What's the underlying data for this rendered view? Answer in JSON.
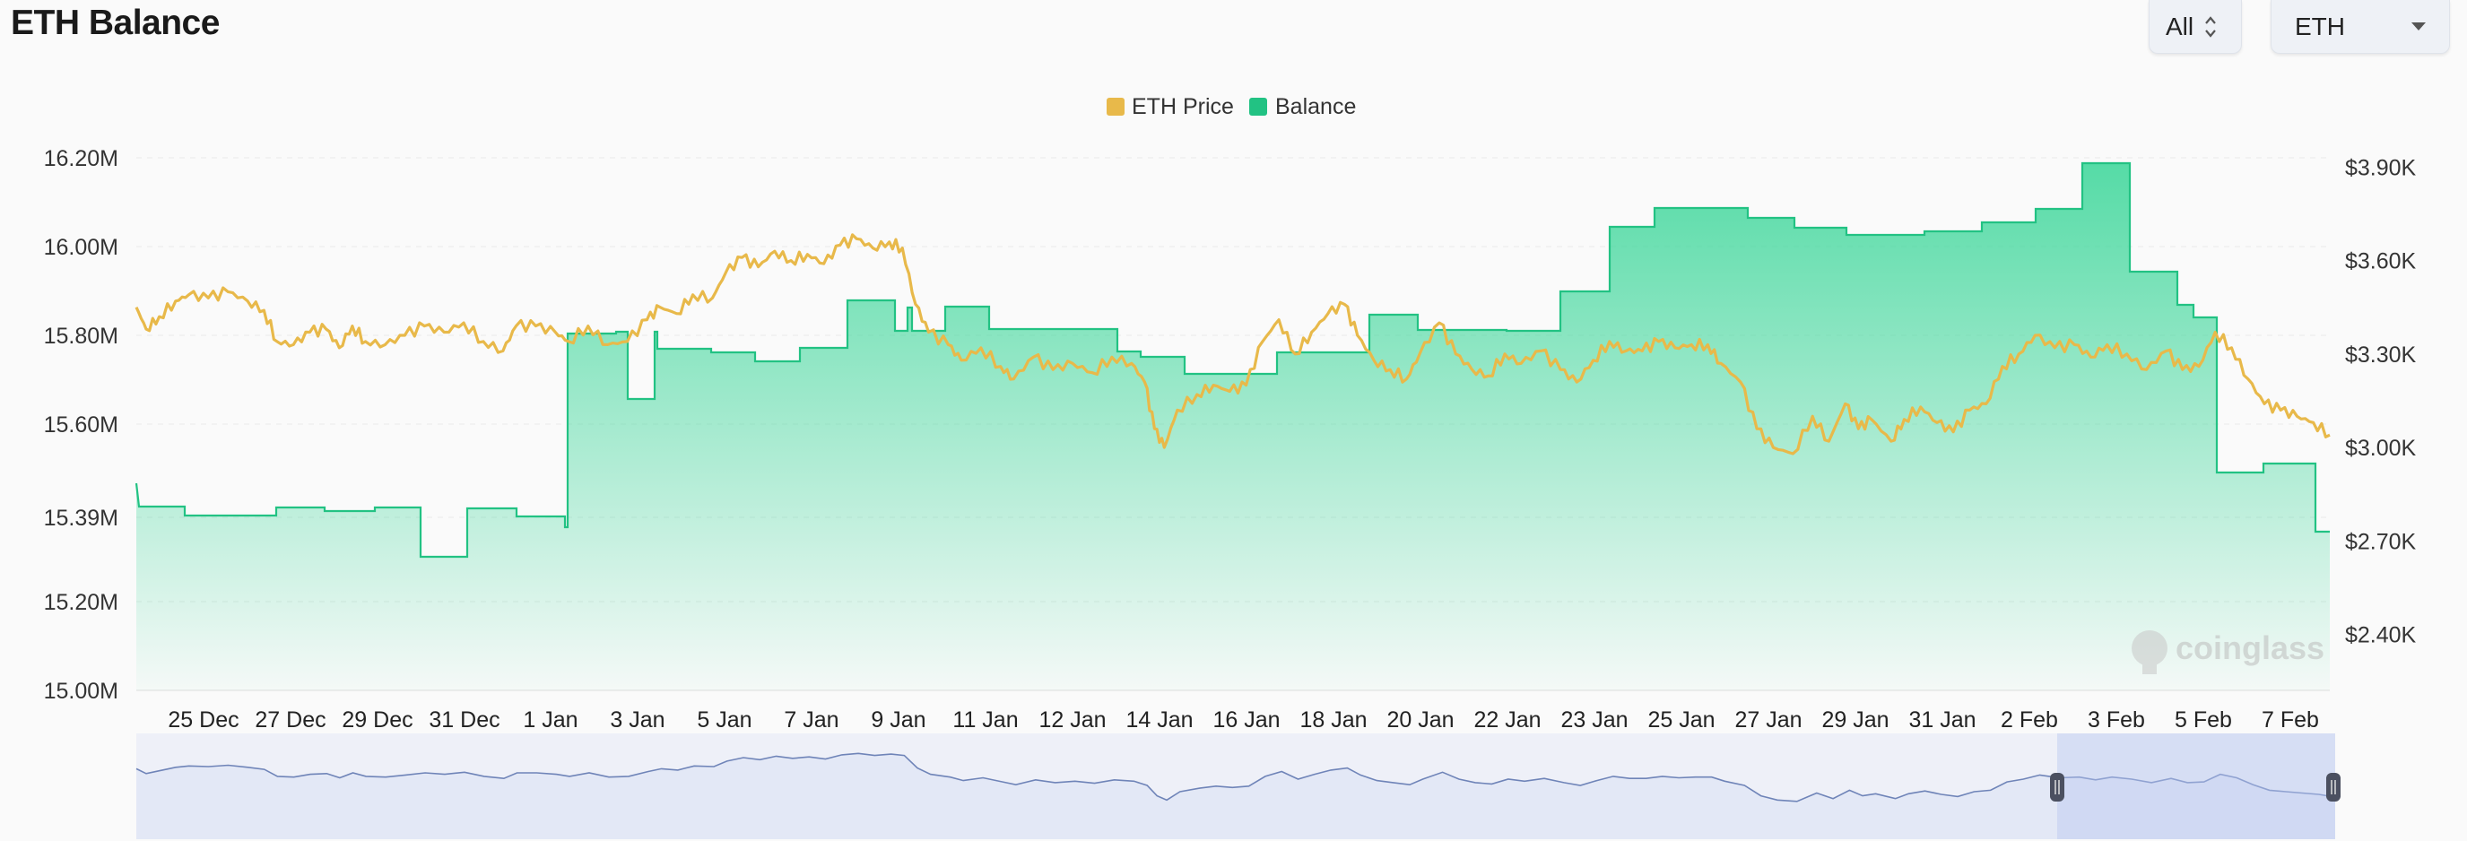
{
  "header": {
    "title": "ETH Balance",
    "range_select": {
      "value": "All"
    },
    "asset_select": {
      "value": "ETH"
    }
  },
  "watermark": "coinglass",
  "colors": {
    "price": "#e8b94a",
    "balance_line": "#22c283",
    "balance_fill_top": "#3fd79b",
    "navigator_line": "#6f84b8",
    "navigator_fill": "#e6eaf7"
  },
  "chart_data": {
    "type": "line",
    "x_tick_labels": [
      "25 Dec",
      "27 Dec",
      "29 Dec",
      "31 Dec",
      "1 Jan",
      "3 Jan",
      "5 Jan",
      "7 Jan",
      "9 Jan",
      "11 Jan",
      "12 Jan",
      "14 Jan",
      "16 Jan",
      "18 Jan",
      "20 Jan",
      "22 Jan",
      "23 Jan",
      "25 Jan",
      "27 Jan",
      "29 Jan",
      "31 Jan",
      "2 Feb",
      "3 Feb",
      "5 Feb",
      "7 Feb"
    ],
    "x_range_days": [
      0,
      48.5
    ],
    "y_left": {
      "ticks": [
        "15.00M",
        "15.20M",
        "15.39M",
        "15.60M",
        "15.80M",
        "16.00M",
        "16.20M"
      ],
      "range": [
        15.0,
        16.2
      ]
    },
    "y_right": {
      "ticks": [
        "$2.40K",
        "$2.70K",
        "$3.00K",
        "$3.30K",
        "$3.60K",
        "$3.90K"
      ],
      "range": [
        2.22,
        3.93
      ]
    },
    "legend": {
      "placement": "top-center"
    },
    "series": [
      {
        "name": "ETH Price",
        "axis": "right",
        "points": [
          [
            0,
            3.45
          ],
          [
            0.3,
            3.38
          ],
          [
            0.7,
            3.42
          ],
          [
            1.2,
            3.47
          ],
          [
            1.6,
            3.49
          ],
          [
            2.2,
            3.48
          ],
          [
            2.8,
            3.5
          ],
          [
            3.4,
            3.47
          ],
          [
            3.9,
            3.44
          ],
          [
            4.3,
            3.34
          ],
          [
            4.8,
            3.33
          ],
          [
            5.3,
            3.37
          ],
          [
            5.8,
            3.38
          ],
          [
            6.2,
            3.32
          ],
          [
            6.6,
            3.39
          ],
          [
            7.0,
            3.34
          ],
          [
            7.6,
            3.33
          ],
          [
            8.2,
            3.36
          ],
          [
            8.8,
            3.39
          ],
          [
            9.4,
            3.37
          ],
          [
            10.0,
            3.4
          ],
          [
            10.6,
            3.34
          ],
          [
            11.2,
            3.31
          ],
          [
            11.6,
            3.39
          ],
          [
            12.2,
            3.39
          ],
          [
            12.8,
            3.37
          ],
          [
            13.2,
            3.34
          ],
          [
            13.8,
            3.39
          ],
          [
            14.4,
            3.33
          ],
          [
            15.0,
            3.34
          ],
          [
            15.6,
            3.41
          ],
          [
            16.0,
            3.45
          ],
          [
            16.5,
            3.43
          ],
          [
            17.0,
            3.49
          ],
          [
            17.6,
            3.48
          ],
          [
            18.0,
            3.56
          ],
          [
            18.5,
            3.61
          ],
          [
            19.0,
            3.58
          ],
          [
            19.5,
            3.63
          ],
          [
            20.0,
            3.6
          ],
          [
            20.5,
            3.62
          ],
          [
            21.0,
            3.59
          ],
          [
            21.5,
            3.65
          ],
          [
            22.0,
            3.67
          ],
          [
            22.5,
            3.64
          ],
          [
            23.0,
            3.66
          ],
          [
            23.4,
            3.64
          ],
          [
            23.8,
            3.46
          ],
          [
            24.2,
            3.37
          ],
          [
            24.8,
            3.33
          ],
          [
            25.2,
            3.28
          ],
          [
            25.8,
            3.32
          ],
          [
            26.4,
            3.26
          ],
          [
            26.8,
            3.22
          ],
          [
            27.4,
            3.29
          ],
          [
            28.0,
            3.25
          ],
          [
            28.6,
            3.27
          ],
          [
            29.2,
            3.24
          ],
          [
            29.8,
            3.29
          ],
          [
            30.4,
            3.27
          ],
          [
            30.8,
            3.21
          ],
          [
            31.1,
            3.06
          ],
          [
            31.4,
            3.0
          ],
          [
            31.8,
            3.12
          ],
          [
            32.4,
            3.17
          ],
          [
            32.9,
            3.2
          ],
          [
            33.4,
            3.18
          ],
          [
            33.9,
            3.2
          ],
          [
            34.4,
            3.34
          ],
          [
            34.9,
            3.41
          ],
          [
            35.4,
            3.3
          ],
          [
            35.9,
            3.37
          ],
          [
            36.4,
            3.43
          ],
          [
            36.9,
            3.46
          ],
          [
            37.3,
            3.36
          ],
          [
            37.8,
            3.28
          ],
          [
            38.3,
            3.25
          ],
          [
            38.8,
            3.22
          ],
          [
            39.2,
            3.3
          ],
          [
            39.8,
            3.4
          ],
          [
            40.3,
            3.3
          ],
          [
            40.8,
            3.25
          ],
          [
            41.3,
            3.23
          ],
          [
            41.8,
            3.3
          ],
          [
            42.3,
            3.27
          ],
          [
            42.9,
            3.31
          ],
          [
            43.5,
            3.25
          ],
          [
            44.0,
            3.21
          ],
          [
            44.5,
            3.28
          ],
          [
            45.0,
            3.34
          ],
          [
            45.5,
            3.31
          ],
          [
            46.0,
            3.31
          ],
          [
            46.5,
            3.34
          ],
          [
            47.0,
            3.32
          ],
          [
            47.5,
            3.33
          ],
          [
            48.0,
            3.33
          ],
          [
            48.4,
            3.27
          ],
          [
            49.0,
            3.21
          ],
          [
            49.5,
            3.06
          ],
          [
            50.0,
            3.0
          ],
          [
            50.6,
            2.98
          ],
          [
            51.2,
            3.1
          ],
          [
            51.7,
            3.02
          ],
          [
            52.2,
            3.14
          ],
          [
            52.6,
            3.06
          ],
          [
            53.0,
            3.09
          ],
          [
            53.6,
            3.02
          ],
          [
            54.0,
            3.09
          ],
          [
            54.5,
            3.13
          ],
          [
            55.0,
            3.08
          ],
          [
            55.5,
            3.05
          ],
          [
            56.0,
            3.12
          ],
          [
            56.5,
            3.14
          ],
          [
            57.0,
            3.26
          ],
          [
            57.5,
            3.3
          ],
          [
            58.0,
            3.36
          ],
          [
            58.6,
            3.32
          ],
          [
            59.2,
            3.33
          ],
          [
            59.7,
            3.29
          ],
          [
            60.2,
            3.33
          ],
          [
            60.8,
            3.3
          ],
          [
            61.4,
            3.25
          ],
          [
            62.0,
            3.31
          ],
          [
            62.5,
            3.25
          ],
          [
            63.0,
            3.26
          ],
          [
            63.5,
            3.37
          ],
          [
            64.0,
            3.32
          ],
          [
            64.5,
            3.22
          ],
          [
            65.0,
            3.14
          ],
          [
            65.5,
            3.12
          ],
          [
            66.0,
            3.1
          ],
          [
            66.5,
            3.08
          ],
          [
            67.0,
            3.04
          ]
        ]
      },
      {
        "name": "Balance",
        "axis": "left",
        "points": []
      }
    ]
  }
}
